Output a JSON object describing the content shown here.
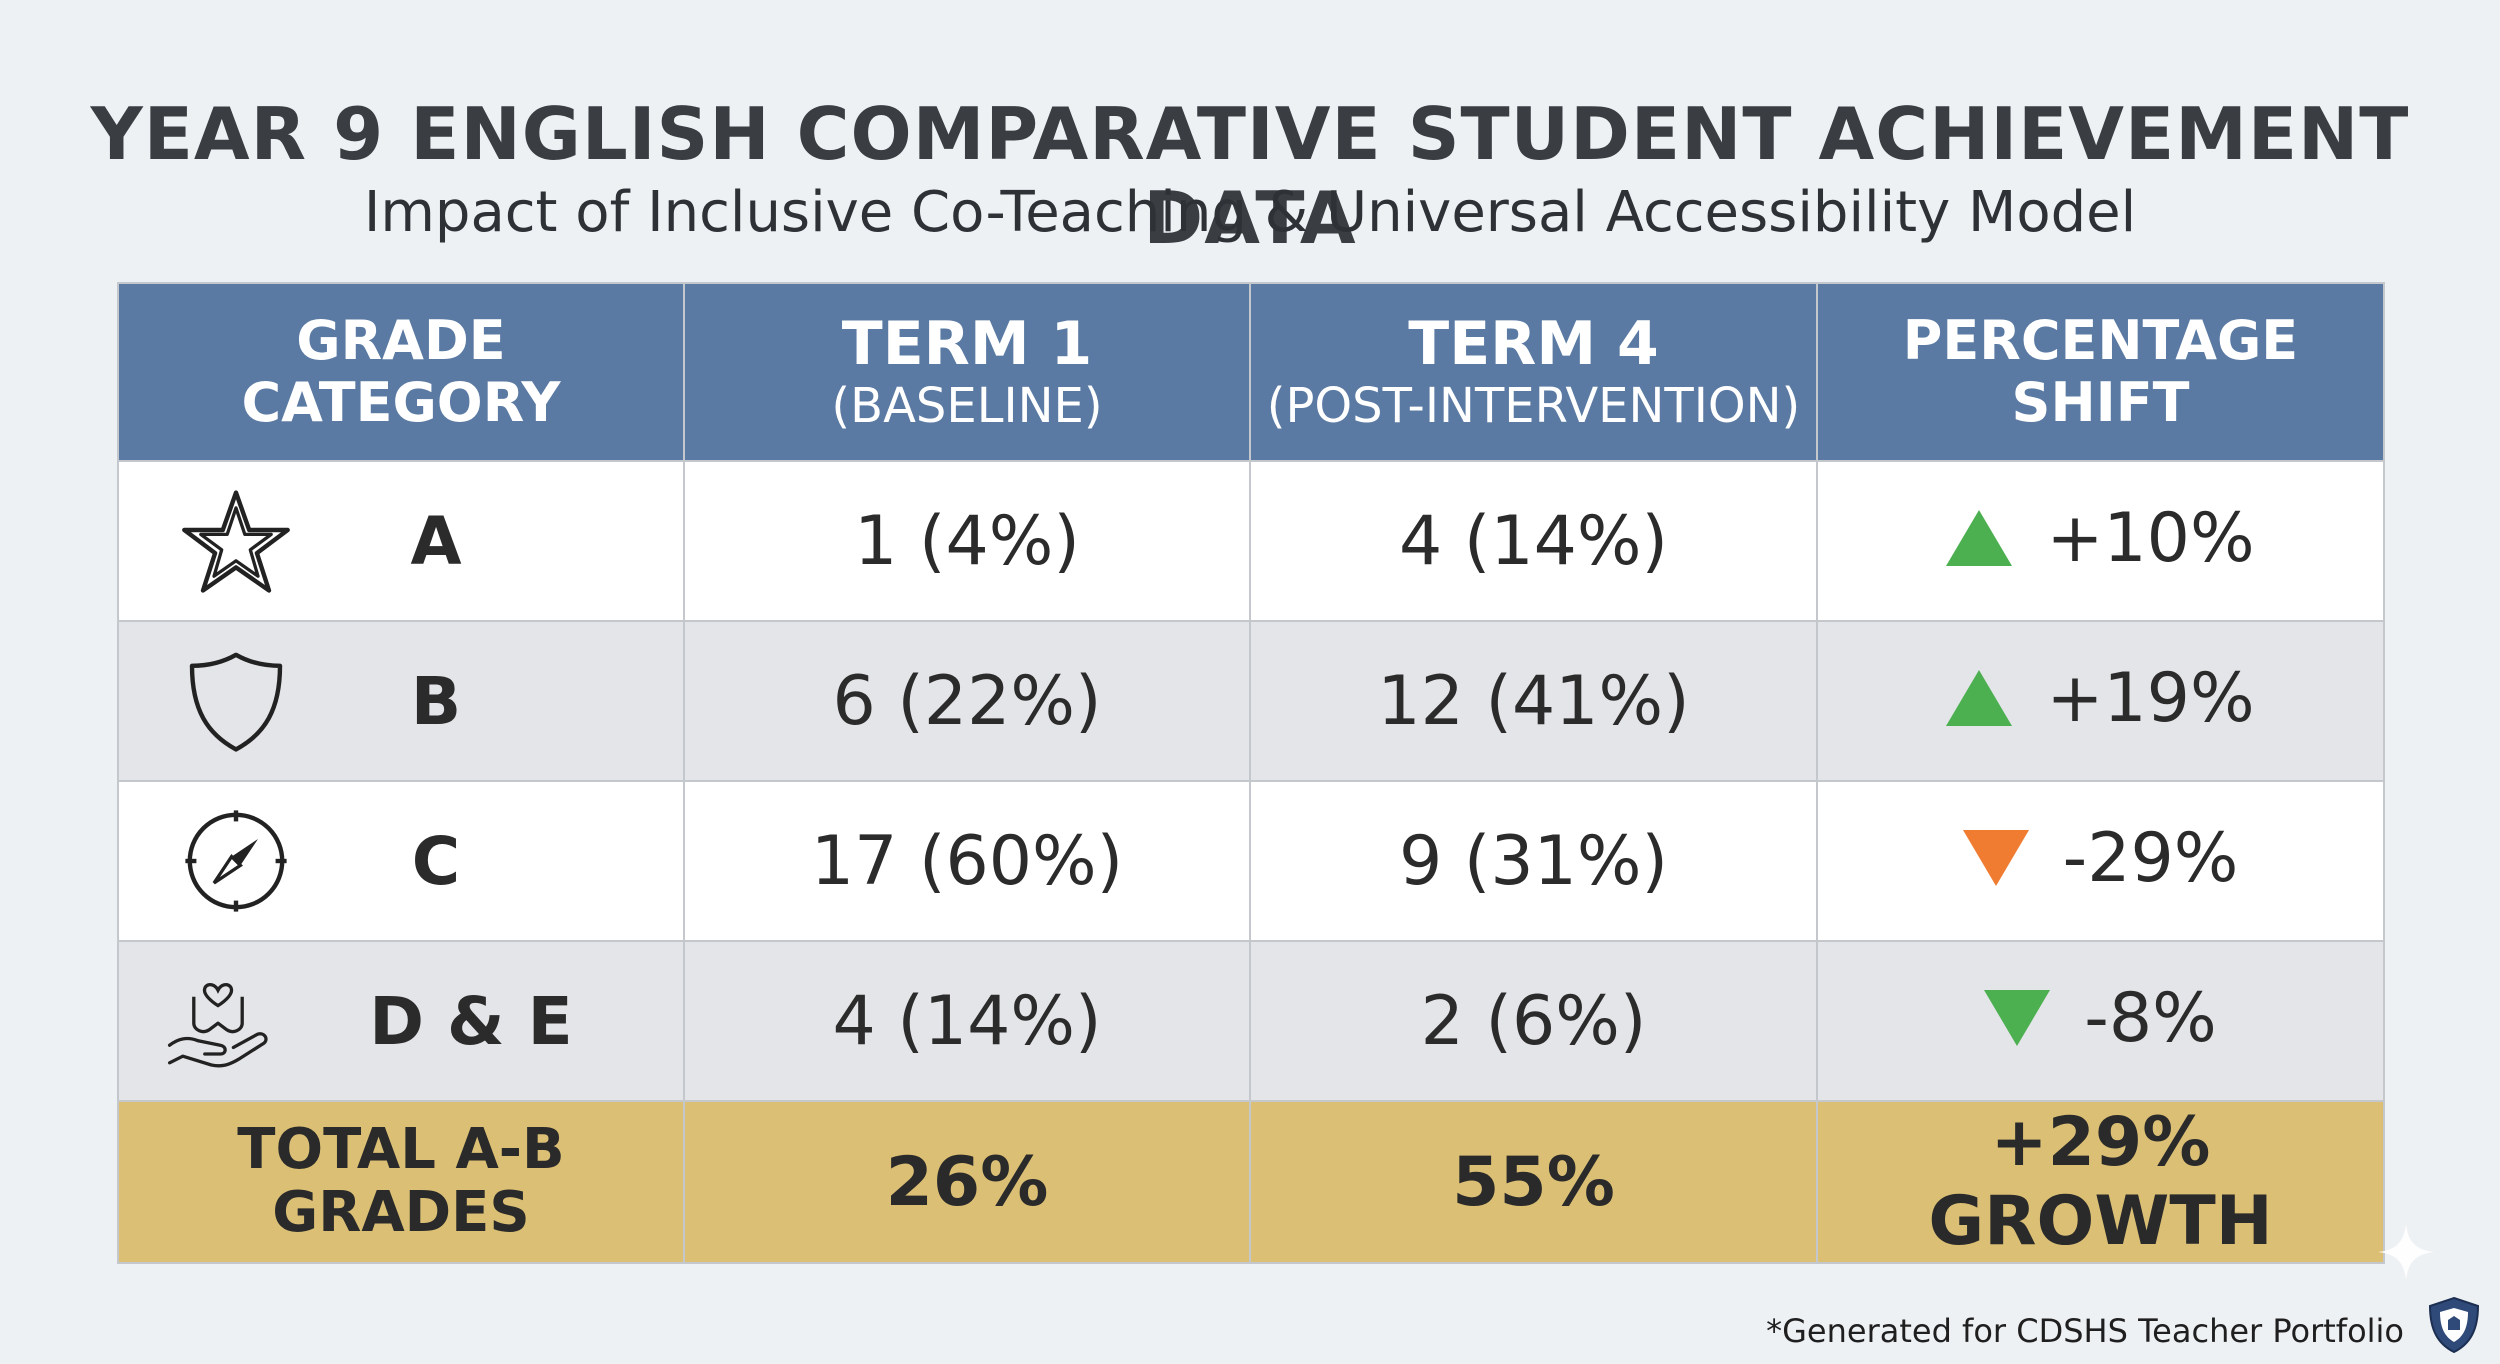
{
  "title": "YEAR 9 ENGLISH COMPARATIVE STUDENT ACHIEVEMENT DATA",
  "subtitle": "Impact of Inclusive Co-Teaching & Universal Accessibility Model",
  "headers": {
    "grade": "GRADE CATEGORY",
    "term1": "TERM 1",
    "term1_sub": "(BASELINE)",
    "term4": "TERM 4",
    "term4_sub": "(POST-INTERVENTION)",
    "shift": "PERCENTAGE SHIFT"
  },
  "rows": [
    {
      "grade": "A",
      "icon": "star-icon",
      "term1": "1 (4%)",
      "term4": "4 (14%)",
      "shift": "+10%",
      "direction": "up",
      "arrow_color": "#4caf50"
    },
    {
      "grade": "B",
      "icon": "shield-icon",
      "term1": "6 (22%)",
      "term4": "12 (41%)",
      "shift": "+19%",
      "direction": "up",
      "arrow_color": "#4caf50"
    },
    {
      "grade": "C",
      "icon": "compass-icon",
      "term1": "17 (60%)",
      "term4": "9 (31%)",
      "shift": "-29%",
      "direction": "down",
      "arrow_color": "#f07c32"
    },
    {
      "grade": "D & E",
      "icon": "hands-heart-icon",
      "term1": "4 (14%)",
      "term4": "2 (6%)",
      "shift": "-8%",
      "direction": "down",
      "arrow_color": "#4caf50"
    }
  ],
  "total": {
    "label": "TOTAL A-B GRADES",
    "term1": "26%",
    "term4": "55%",
    "shift": "+29% GROWTH"
  },
  "footer": "*Generated for CDSHS Teacher Portfolio",
  "colors": {
    "header_bg": "#5a7aa3",
    "total_bg": "#dbbf74",
    "up_arrow": "#4caf50",
    "down_arrow_c": "#f07c32"
  }
}
